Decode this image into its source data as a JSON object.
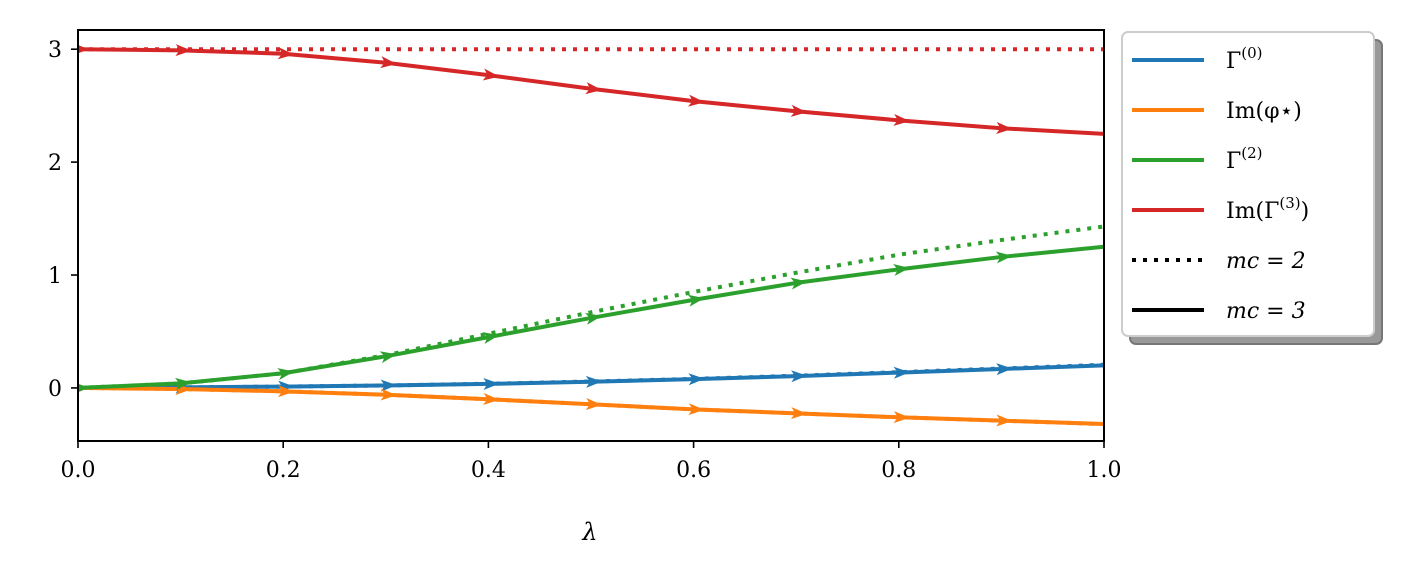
{
  "chart_data": {
    "type": "line",
    "title": "",
    "xlabel": "λ",
    "ylabel": "",
    "xlim": [
      0.0,
      1.0
    ],
    "ylim": [
      -0.47,
      3.17
    ],
    "x_ticks": [
      0.0,
      0.2,
      0.4,
      0.6,
      0.8,
      1.0
    ],
    "x_tick_labels": [
      "0.0",
      "0.2",
      "0.4",
      "0.6",
      "0.8",
      "1.0"
    ],
    "y_ticks": [
      0,
      1,
      2,
      3
    ],
    "y_tick_labels": [
      "0",
      "1",
      "2",
      "3"
    ],
    "grid": false,
    "legend_position": "outside-right",
    "x": [
      0.0,
      0.1,
      0.2,
      0.3,
      0.4,
      0.5,
      0.6,
      0.7,
      0.8,
      0.9,
      1.0
    ],
    "series": [
      {
        "key": "g0_m3",
        "legend": "Γ(0)",
        "color": "#1f77b4",
        "style": "solid",
        "values": [
          0.0,
          0.005,
          0.012,
          0.022,
          0.036,
          0.055,
          0.078,
          0.105,
          0.136,
          0.168,
          0.2
        ],
        "arrows": true
      },
      {
        "key": "g0_m2",
        "color": "#1f77b4",
        "style": "dotted",
        "values": [
          0.0,
          0.005,
          0.012,
          0.022,
          0.037,
          0.057,
          0.08,
          0.108,
          0.14,
          0.172,
          0.205
        ],
        "arrows": false
      },
      {
        "key": "im_m3",
        "legend": "Im(φ⋆)",
        "color": "#ff7f0e",
        "style": "solid",
        "values": [
          0.0,
          -0.01,
          -0.03,
          -0.06,
          -0.1,
          -0.145,
          -0.19,
          -0.225,
          -0.26,
          -0.29,
          -0.32
        ],
        "arrows": true
      },
      {
        "key": "im_m2",
        "color": "#ff7f0e",
        "style": "dotted",
        "values": [
          0.0,
          -0.01,
          -0.03,
          -0.06,
          -0.1,
          -0.145,
          -0.19,
          -0.225,
          -0.26,
          -0.29,
          -0.32
        ],
        "arrows": false
      },
      {
        "key": "g2_m3",
        "legend": "Γ(2)",
        "color": "#2ca02c",
        "style": "solid",
        "values": [
          0.0,
          0.04,
          0.13,
          0.28,
          0.45,
          0.62,
          0.78,
          0.93,
          1.05,
          1.16,
          1.25
        ],
        "arrows": true
      },
      {
        "key": "g2_m2",
        "color": "#2ca02c",
        "style": "dotted",
        "values": [
          0.0,
          0.04,
          0.13,
          0.29,
          0.48,
          0.67,
          0.85,
          1.02,
          1.18,
          1.31,
          1.43
        ],
        "arrows": false
      },
      {
        "key": "g3_m3",
        "legend": "Im(Γ(3))",
        "color": "#d62728",
        "style": "solid",
        "values": [
          3.0,
          2.99,
          2.96,
          2.88,
          2.77,
          2.65,
          2.54,
          2.45,
          2.37,
          2.3,
          2.25
        ],
        "arrows": true
      },
      {
        "key": "g3_m2",
        "color": "#d62728",
        "style": "dotted",
        "values": [
          3.0,
          3.0,
          3.0,
          3.0,
          3.0,
          3.0,
          3.0,
          3.0,
          3.0,
          3.0,
          3.0
        ],
        "arrows": false
      }
    ]
  },
  "legend": {
    "items": [
      {
        "kind": "color",
        "color": "#1f77b4",
        "label": "Γ",
        "sup": "(0)"
      },
      {
        "kind": "color",
        "color": "#ff7f0e",
        "label": "Im(φ⋆)",
        "sup": ""
      },
      {
        "kind": "color",
        "color": "#2ca02c",
        "label": "Γ",
        "sup": "(2)"
      },
      {
        "kind": "color",
        "color": "#d62728",
        "label": "Im(Γ",
        "sup": "(3)",
        "suffix": ")"
      },
      {
        "kind": "dotted",
        "color": "#000000",
        "label": "mc = 2",
        "sup": ""
      },
      {
        "kind": "solid",
        "color": "#000000",
        "label": "mc = 3",
        "sup": ""
      }
    ]
  }
}
